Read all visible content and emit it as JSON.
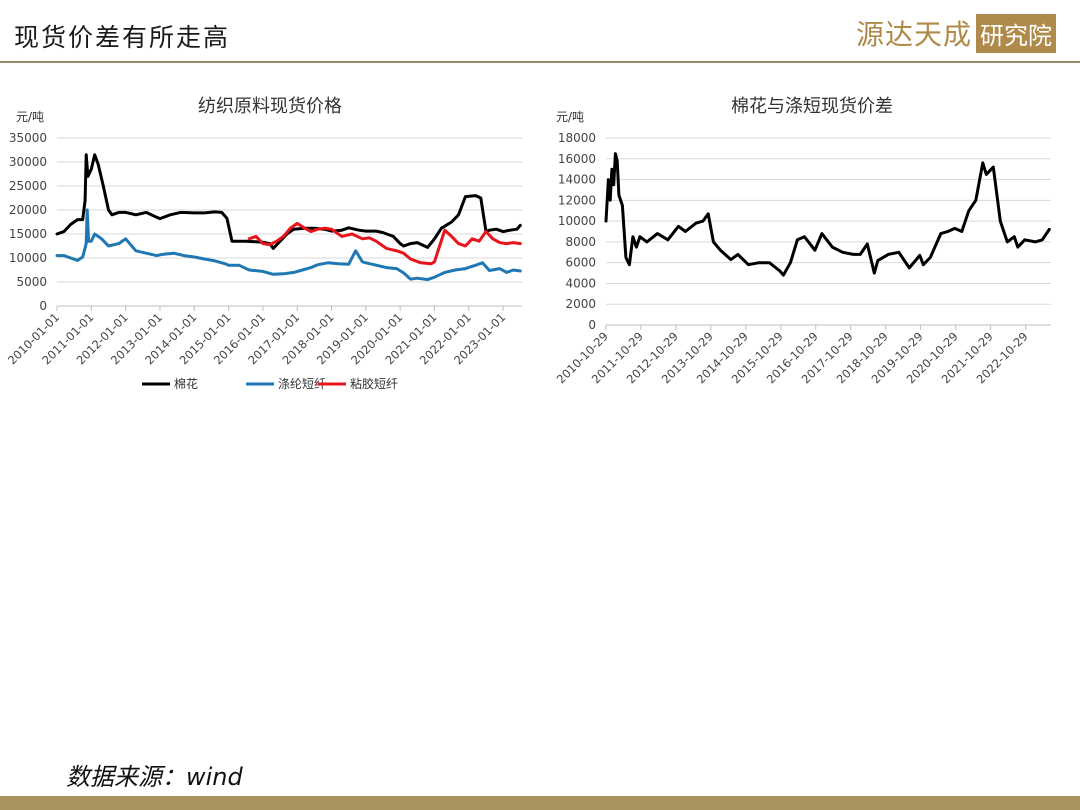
{
  "page": {
    "title": "现货价差有所走高",
    "logo_text": "源达天成",
    "logo_box": "研究院",
    "source": "数据来源：wind",
    "colors": {
      "accent": "#b08a4a",
      "rule": "#9a8a6a",
      "footer": "#a8925f"
    }
  },
  "chart_data": [
    {
      "type": "line",
      "title": "纺织原料现货价格",
      "ylabel": "元/吨",
      "ylim": [
        0,
        35000
      ],
      "yticks": [
        0,
        5000,
        10000,
        15000,
        20000,
        25000,
        30000,
        35000
      ],
      "xlim": [
        2010.0,
        2023.55
      ],
      "xticks": [
        "2010-01-01",
        "2011-01-01",
        "2012-01-01",
        "2013-01-01",
        "2014-01-01",
        "2015-01-01",
        "2016-01-01",
        "2017-01-01",
        "2018-01-01",
        "2019-01-01",
        "2020-01-01",
        "2021-01-01",
        "2022-01-01",
        "2023-01-01"
      ],
      "grid": true,
      "legend": "bottom",
      "series": [
        {
          "name": "棉花",
          "color": "#000000",
          "x": [
            2010.0,
            2010.2,
            2010.4,
            2010.6,
            2010.75,
            2010.82,
            2010.85,
            2010.9,
            2011.0,
            2011.1,
            2011.2,
            2011.35,
            2011.5,
            2011.6,
            2011.8,
            2012.0,
            2012.3,
            2012.6,
            2012.9,
            2013.0,
            2013.3,
            2013.6,
            2014.0,
            2014.3,
            2014.6,
            2014.8,
            2014.95,
            2015.1,
            2015.5,
            2016.0,
            2016.2,
            2016.3,
            2016.5,
            2016.7,
            2016.9,
            2017.2,
            2017.5,
            2017.8,
            2018.0,
            2018.3,
            2018.5,
            2018.8,
            2019.0,
            2019.3,
            2019.5,
            2019.8,
            2020.0,
            2020.1,
            2020.3,
            2020.5,
            2020.8,
            2021.0,
            2021.2,
            2021.5,
            2021.7,
            2021.9,
            2022.2,
            2022.35,
            2022.5,
            2022.6,
            2022.8,
            2023.0,
            2023.2,
            2023.4,
            2023.5
          ],
          "y": [
            15000,
            15500,
            17000,
            18000,
            18000,
            22000,
            31500,
            27000,
            28500,
            31500,
            29500,
            25000,
            20000,
            19000,
            19500,
            19500,
            19000,
            19500,
            18500,
            18200,
            19000,
            19500,
            19400,
            19400,
            19600,
            19500,
            18300,
            13500,
            13500,
            13300,
            13000,
            12000,
            13500,
            15000,
            16000,
            16200,
            16200,
            16000,
            15600,
            15800,
            16300,
            15800,
            15600,
            15600,
            15300,
            14500,
            13000,
            12500,
            13000,
            13200,
            12200,
            14000,
            16200,
            17500,
            19000,
            22800,
            23000,
            22500,
            15500,
            15800,
            16000,
            15500,
            15800,
            16000,
            16800
          ]
        },
        {
          "name": "涤纶短纤",
          "color": "#1f77b4",
          "x": [
            2010.0,
            2010.2,
            2010.4,
            2010.6,
            2010.75,
            2010.85,
            2010.88,
            2010.92,
            2011.0,
            2011.1,
            2011.3,
            2011.5,
            2011.8,
            2012.0,
            2012.3,
            2012.6,
            2012.9,
            2013.1,
            2013.4,
            2013.7,
            2014.0,
            2014.3,
            2014.6,
            2014.9,
            2015.0,
            2015.3,
            2015.6,
            2016.0,
            2016.3,
            2016.6,
            2016.9,
            2017.1,
            2017.4,
            2017.6,
            2017.9,
            2018.2,
            2018.5,
            2018.7,
            2018.9,
            2019.0,
            2019.3,
            2019.6,
            2019.9,
            2020.1,
            2020.3,
            2020.5,
            2020.8,
            2021.0,
            2021.3,
            2021.6,
            2021.9,
            2022.2,
            2022.4,
            2022.6,
            2022.9,
            2023.1,
            2023.3,
            2023.5
          ],
          "y": [
            10500,
            10500,
            10000,
            9500,
            10200,
            13000,
            20000,
            13500,
            13500,
            15000,
            14000,
            12500,
            13000,
            14000,
            11500,
            11000,
            10500,
            10800,
            11000,
            10500,
            10200,
            9800,
            9400,
            8800,
            8500,
            8500,
            7500,
            7200,
            6600,
            6700,
            7000,
            7400,
            8000,
            8600,
            9000,
            8800,
            8700,
            11500,
            9200,
            9000,
            8500,
            8000,
            7800,
            6900,
            5600,
            5800,
            5500,
            6000,
            7000,
            7500,
            7800,
            8500,
            9000,
            7400,
            7800,
            7000,
            7500,
            7300
          ]
        },
        {
          "name": "粘胶短纤",
          "color": "#e8131b",
          "x": [
            2015.6,
            2015.8,
            2016.0,
            2016.2,
            2016.4,
            2016.6,
            2016.8,
            2017.0,
            2017.2,
            2017.4,
            2017.6,
            2017.8,
            2018.0,
            2018.3,
            2018.6,
            2018.9,
            2019.1,
            2019.3,
            2019.6,
            2019.9,
            2020.1,
            2020.3,
            2020.6,
            2020.9,
            2021.0,
            2021.15,
            2021.3,
            2021.5,
            2021.7,
            2021.9,
            2022.1,
            2022.3,
            2022.5,
            2022.7,
            2022.9,
            2023.1,
            2023.3,
            2023.5
          ],
          "y": [
            14000,
            14500,
            13000,
            12800,
            13500,
            14500,
            16200,
            17200,
            16300,
            15500,
            16000,
            16200,
            16000,
            14500,
            15000,
            14000,
            14200,
            13500,
            12000,
            11500,
            11000,
            9800,
            9000,
            8800,
            9200,
            12500,
            15800,
            14500,
            13000,
            12500,
            14000,
            13500,
            15500,
            14000,
            13200,
            13000,
            13200,
            13000
          ]
        }
      ]
    },
    {
      "type": "line",
      "title": "棉花与涤短现货价差",
      "ylabel": "元/吨",
      "ylim": [
        0,
        18000
      ],
      "yticks": [
        0,
        2000,
        4000,
        6000,
        8000,
        10000,
        12000,
        14000,
        16000,
        18000
      ],
      "xlim": [
        2010.83,
        2023.55
      ],
      "xticks": [
        "2010-10-29",
        "2011-10-29",
        "2012-10-29",
        "2013-10-29",
        "2014-10-29",
        "2015-10-29",
        "2016-10-29",
        "2017-10-29",
        "2018-10-29",
        "2019-10-29",
        "2020-10-29",
        "2021-10-29",
        "2022-10-29"
      ],
      "grid": true,
      "series": [
        {
          "name": "",
          "color": "#000000",
          "x": [
            2010.83,
            2010.9,
            2010.95,
            2011.0,
            2011.05,
            2011.1,
            2011.15,
            2011.2,
            2011.3,
            2011.4,
            2011.5,
            2011.6,
            2011.7,
            2011.8,
            2012.0,
            2012.3,
            2012.6,
            2012.9,
            2013.1,
            2013.4,
            2013.6,
            2013.75,
            2013.9,
            2014.1,
            2014.4,
            2014.6,
            2014.9,
            2015.2,
            2015.5,
            2015.8,
            2015.9,
            2016.1,
            2016.3,
            2016.5,
            2016.8,
            2017.0,
            2017.3,
            2017.6,
            2017.9,
            2018.1,
            2018.3,
            2018.5,
            2018.6,
            2018.9,
            2019.2,
            2019.5,
            2019.8,
            2019.9,
            2020.1,
            2020.4,
            2020.6,
            2020.8,
            2021.0,
            2021.2,
            2021.4,
            2021.6,
            2021.7,
            2021.9,
            2022.1,
            2022.3,
            2022.5,
            2022.6,
            2022.8,
            2023.1,
            2023.3,
            2023.5
          ],
          "y": [
            10000,
            14000,
            12000,
            15000,
            13500,
            16500,
            15800,
            12500,
            11500,
            6500,
            5800,
            8500,
            7500,
            8500,
            8000,
            8800,
            8200,
            9500,
            9000,
            9800,
            10000,
            10700,
            8000,
            7200,
            6300,
            6800,
            5800,
            6000,
            6000,
            5200,
            4800,
            6000,
            8200,
            8500,
            7200,
            8800,
            7500,
            7000,
            6800,
            6800,
            7800,
            5000,
            6200,
            6800,
            7000,
            5500,
            6700,
            5800,
            6500,
            8800,
            9000,
            9300,
            9000,
            11000,
            12000,
            15600,
            14500,
            15200,
            10000,
            8000,
            8500,
            7500,
            8200,
            8000,
            8200,
            9200
          ]
        }
      ]
    }
  ]
}
